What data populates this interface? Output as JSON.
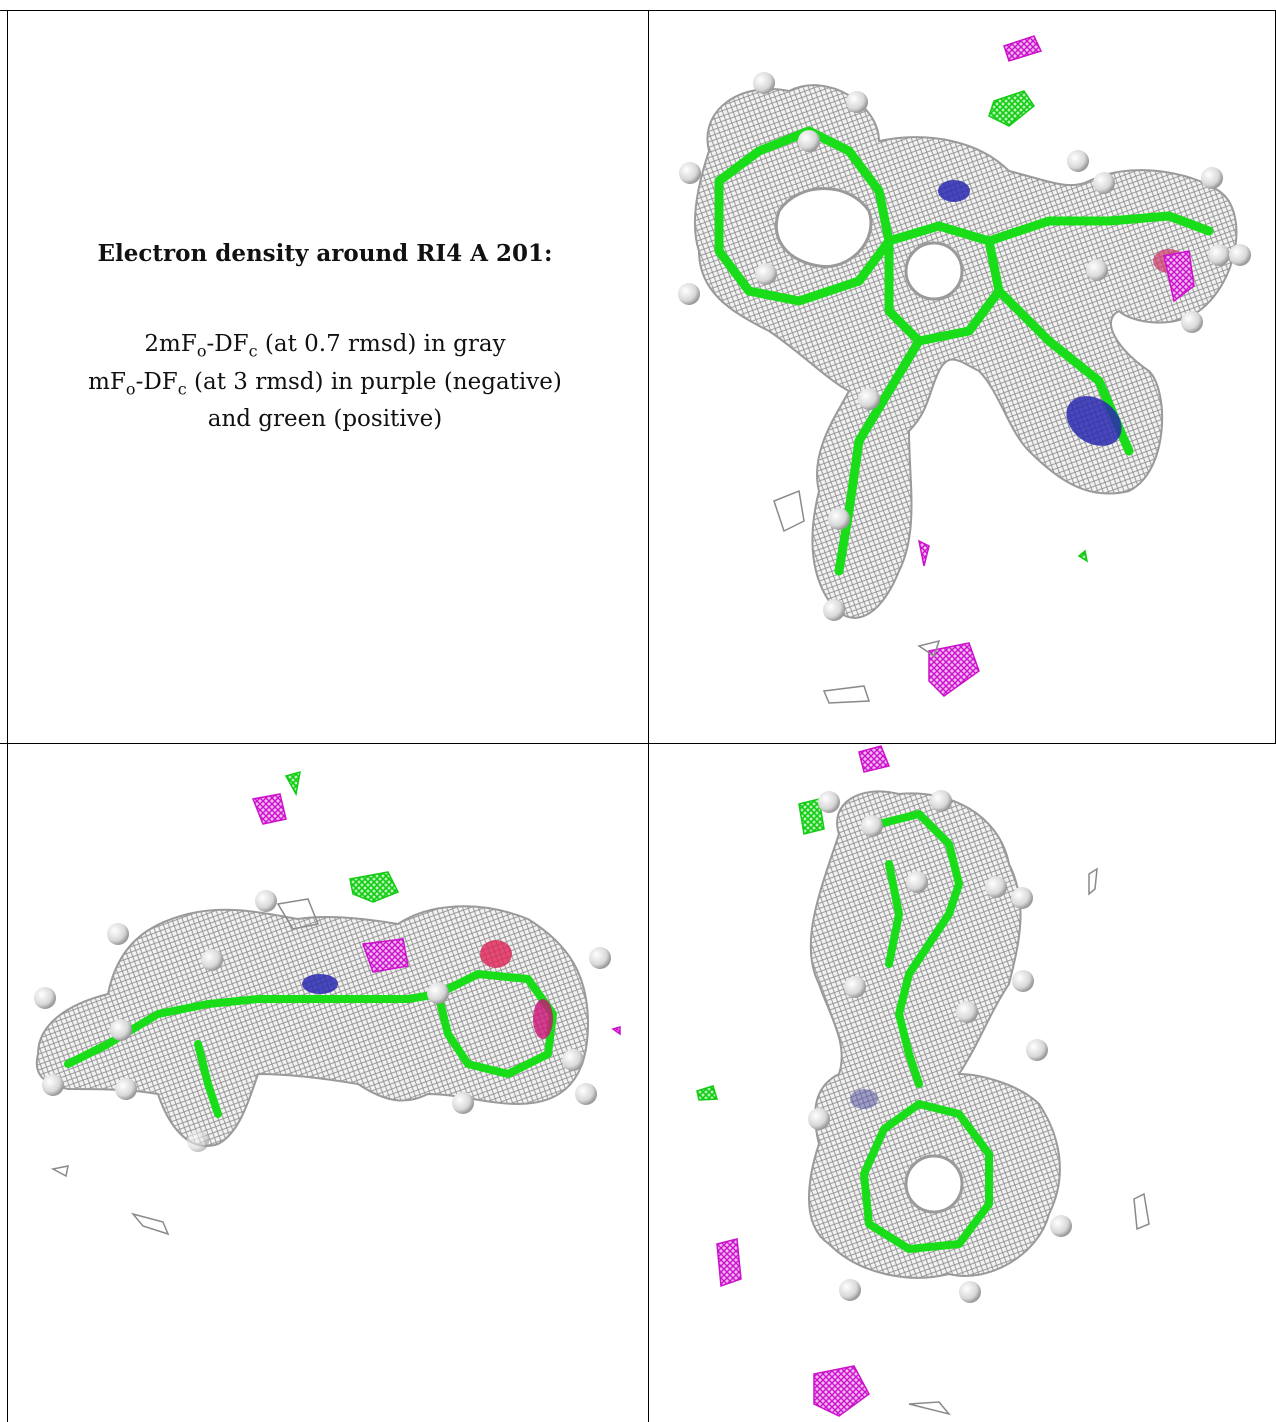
{
  "caption": {
    "title": "Electron density around RI4 A 201:",
    "line1_prefix": "2mF",
    "line1_sub1": "o",
    "line1_mid": "-DF",
    "line1_sub2": "c",
    "line1_suffix": " (at 0.7 rmsd) in gray",
    "line2_prefix": "mF",
    "line2_sub1": "o",
    "line2_mid": "-DF",
    "line2_sub2": "c",
    "line2_suffix": " (at 3 rmsd) in purple (negative)",
    "line3": "and green (positive)"
  },
  "colors": {
    "density_2fofc": "#a9a9a9",
    "density_positive": "#22dd22",
    "density_negative": "#cc22cc",
    "nitrogen": "#2a2ab0",
    "oxygen": "#dd2255",
    "hydrogen": "#e6e6e6"
  }
}
